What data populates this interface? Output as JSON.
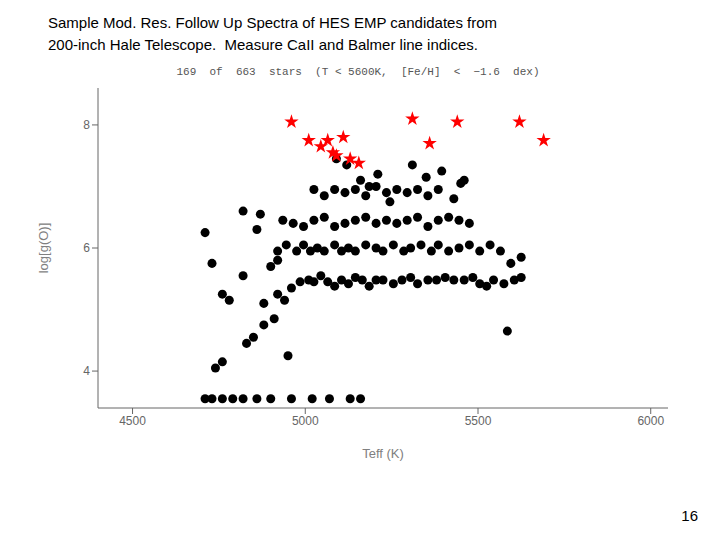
{
  "chart_data": {
    "type": "scatter",
    "title": [
      "Sample Mod. Res. Follow Up Spectra of HES EMP candidates from",
      "200-inch Hale Telescope.  Measure CaII and Balmer line indices."
    ],
    "subtitle": "169  of  663  stars  (T < 5600K,  [Fe/H]  <  −1.6  dex)",
    "x_label": "Teff  (K)",
    "y_label": "log[g(O)]",
    "annotations": [
      "16"
    ],
    "xlim": [
      4400,
      6050
    ],
    "ylim": [
      3.4,
      8.6
    ],
    "xticks": [
      4500,
      5000,
      5500,
      6000
    ],
    "yticks": [
      4,
      6,
      8
    ],
    "grid": false,
    "series": [
      {
        "color": "#000000",
        "marker": "circle",
        "x": [
          4710,
          4730,
          4760,
          4790,
          4820,
          4860,
          4900,
          4960,
          5020,
          5070,
          5130,
          5160,
          4740,
          4760,
          4830,
          4850,
          4880,
          4910,
          4780,
          4820,
          4880,
          4920,
          4940,
          4960,
          4985,
          5010,
          5025,
          5045,
          5065,
          5085,
          5105,
          5125,
          5145,
          5165,
          5185,
          5205,
          5225,
          5255,
          5280,
          5305,
          5325,
          5355,
          5380,
          5405,
          5430,
          5460,
          5485,
          5505,
          5525,
          5545,
          5575,
          5605,
          5625,
          4920,
          4945,
          4975,
          4995,
          5015,
          5035,
          5055,
          5085,
          5105,
          5125,
          5145,
          5175,
          5205,
          5225,
          5255,
          5285,
          5305,
          5335,
          5365,
          5385,
          5415,
          5445,
          5475,
          5505,
          5535,
          5565,
          5595,
          5625,
          4935,
          4965,
          4995,
          5025,
          5055,
          5085,
          5115,
          5145,
          5175,
          5205,
          5235,
          5265,
          5295,
          5325,
          5355,
          5385,
          5415,
          5445,
          5475,
          5025,
          5055,
          5085,
          5115,
          5145,
          5175,
          5205,
          5235,
          5265,
          5295,
          5325,
          5355,
          5385,
          4710,
          4730,
          4760,
          5585,
          4950,
          5090,
          5120,
          5160,
          5185,
          5245,
          4820,
          4860,
          4870,
          4900,
          4920,
          5460,
          5350,
          5430,
          5210,
          5310,
          5395,
          5450
        ],
        "values": [
          3.55,
          3.55,
          3.55,
          3.55,
          3.55,
          3.55,
          3.55,
          3.55,
          3.55,
          3.55,
          3.55,
          3.55,
          4.05,
          4.15,
          4.45,
          4.55,
          4.75,
          4.85,
          5.15,
          5.55,
          5.1,
          5.25,
          5.15,
          5.35,
          5.45,
          5.48,
          5.45,
          5.55,
          5.45,
          5.38,
          5.48,
          5.42,
          5.52,
          5.48,
          5.38,
          5.48,
          5.48,
          5.42,
          5.48,
          5.52,
          5.42,
          5.48,
          5.48,
          5.52,
          5.48,
          5.48,
          5.52,
          5.42,
          5.38,
          5.48,
          5.42,
          5.48,
          5.52,
          5.95,
          6.05,
          5.95,
          6.05,
          5.95,
          6.0,
          5.95,
          6.05,
          5.95,
          6.0,
          5.95,
          6.05,
          6.0,
          5.95,
          6.05,
          5.95,
          6.0,
          6.05,
          5.95,
          6.05,
          5.95,
          6.0,
          6.05,
          5.95,
          6.05,
          5.95,
          5.75,
          5.85,
          6.45,
          6.4,
          6.35,
          6.45,
          6.5,
          6.35,
          6.4,
          6.45,
          6.5,
          6.4,
          6.45,
          6.4,
          6.45,
          6.5,
          6.35,
          6.45,
          6.5,
          6.45,
          6.4,
          6.95,
          6.85,
          6.95,
          6.9,
          6.95,
          6.85,
          7.0,
          6.9,
          6.95,
          6.9,
          6.95,
          6.85,
          6.95,
          6.25,
          5.75,
          5.25,
          4.65,
          4.25,
          7.45,
          7.35,
          7.1,
          7.0,
          6.75,
          6.6,
          6.3,
          6.55,
          5.7,
          5.8,
          7.1,
          7.15,
          6.8,
          7.2,
          7.35,
          7.25,
          7.05
        ]
      },
      {
        "color": "#ff0000",
        "marker": "star",
        "x": [
          4960,
          5010,
          5045,
          5065,
          5080,
          5090,
          5110,
          5130,
          5155,
          5310,
          5360,
          5440,
          5620,
          5690
        ],
        "values": [
          8.05,
          7.75,
          7.65,
          7.75,
          7.55,
          7.5,
          7.8,
          7.45,
          7.38,
          8.1,
          7.7,
          8.05,
          8.05,
          7.75
        ]
      }
    ]
  }
}
